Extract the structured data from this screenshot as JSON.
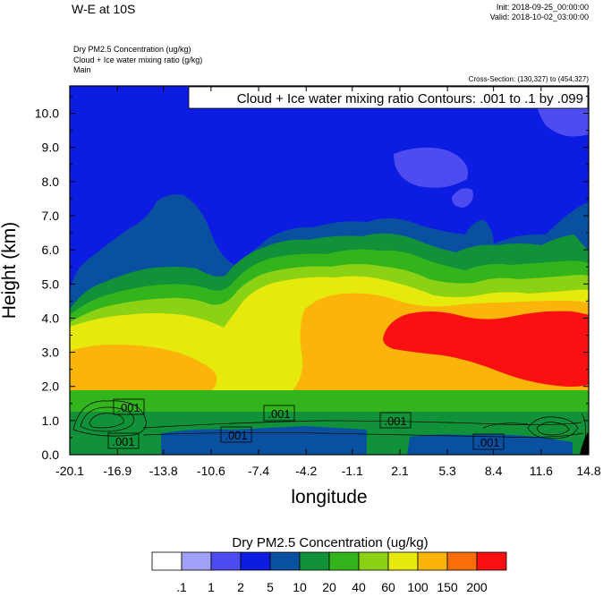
{
  "header": {
    "title": "W-E at 10S",
    "init": "Init: 2018-09-25_00:00:00",
    "valid": "Valid: 2018-10-02_03:00:00",
    "fields": [
      "Dry PM2.5 Concentration   (ug/kg)",
      "Cloud + Ice water mixing ratio   (g/kg)",
      "Main"
    ],
    "cross_section": "Cross-Section: (130,327) to (454,327)"
  },
  "chart_data": {
    "type": "heatmap",
    "title": "Cloud + Ice water mixing ratio Contours: .001 to .1 by .099",
    "xlabel": "longitude",
    "ylabel": "Height (km)",
    "x_ticks": [
      "-20.1",
      "-16.9",
      "-13.8",
      "-10.6",
      "-7.4",
      "-4.2",
      "-1.1",
      "2.1",
      "5.3",
      "8.4",
      "11.6",
      "14.8"
    ],
    "y_ticks": [
      "0.0",
      "1.0",
      "2.0",
      "3.0",
      "4.0",
      "5.0",
      "6.0",
      "7.0",
      "8.0",
      "9.0",
      "10.0"
    ],
    "xlim": [
      -20.1,
      14.8
    ],
    "ylim": [
      0,
      10.8
    ],
    "colorbar": {
      "title": "Dry PM2.5 Concentration  (ug/kg)",
      "labels": [
        ".1",
        "1",
        "2",
        "5",
        "10",
        "20",
        "40",
        "60",
        "100",
        "150",
        "200"
      ],
      "colors": [
        "#ffffff",
        "#a0a0f8",
        "#4c4cf0",
        "#0c1ce0",
        "#0a50a0",
        "#129238",
        "#34b41c",
        "#8cd214",
        "#e6ea0c",
        "#fab40a",
        "#fa6e0a",
        "#fa1010"
      ]
    },
    "contour_labels": [
      ".001",
      ".001",
      ".001",
      ".001",
      ".001",
      ".001"
    ]
  }
}
